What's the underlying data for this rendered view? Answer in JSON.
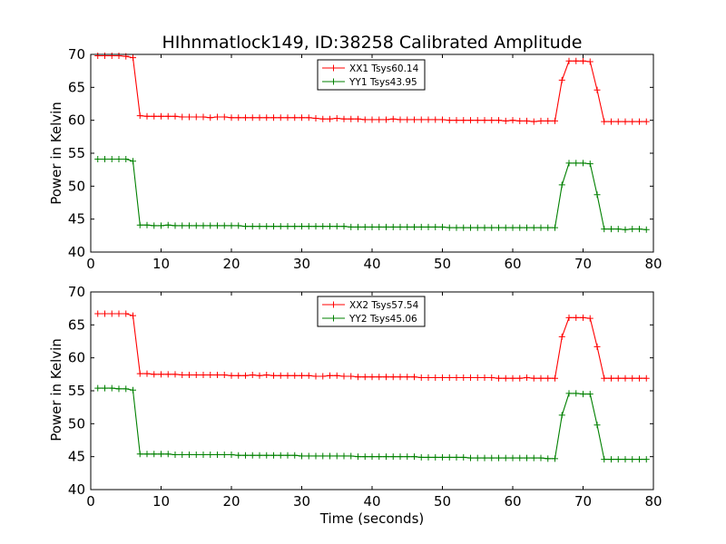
{
  "chart_data": [
    {
      "type": "line",
      "title": "HIhnmatlock149, ID:38258 Calibrated Amplitude",
      "xlabel": "",
      "ylabel": "Power in Kelvin",
      "xlim": [
        0,
        80
      ],
      "ylim": [
        40,
        70
      ],
      "xticks": [
        "0",
        "10",
        "20",
        "30",
        "40",
        "50",
        "60",
        "70",
        "80"
      ],
      "yticks": [
        "40",
        "45",
        "50",
        "55",
        "60",
        "65",
        "70"
      ],
      "grid": false,
      "legend": "upper-center",
      "x": [
        1,
        2,
        3,
        4,
        5,
        6,
        7,
        8,
        9,
        10,
        11,
        12,
        13,
        14,
        15,
        16,
        17,
        18,
        19,
        20,
        21,
        22,
        23,
        24,
        25,
        26,
        27,
        28,
        29,
        30,
        31,
        32,
        33,
        34,
        35,
        36,
        37,
        38,
        39,
        40,
        41,
        42,
        43,
        44,
        45,
        46,
        47,
        48,
        49,
        50,
        51,
        52,
        53,
        54,
        55,
        56,
        57,
        58,
        59,
        60,
        61,
        62,
        63,
        64,
        65,
        66,
        67,
        68,
        69,
        70,
        71,
        72,
        73,
        74,
        75,
        76,
        77,
        78,
        79
      ],
      "series": [
        {
          "name": "XX1 Tsys60.14",
          "color": "#ff0000",
          "values": [
            69.8,
            69.8,
            69.8,
            69.8,
            69.7,
            69.5,
            60.7,
            60.6,
            60.6,
            60.6,
            60.6,
            60.6,
            60.5,
            60.5,
            60.5,
            60.5,
            60.4,
            60.5,
            60.5,
            60.4,
            60.4,
            60.4,
            60.4,
            60.4,
            60.4,
            60.4,
            60.4,
            60.4,
            60.4,
            60.4,
            60.4,
            60.3,
            60.2,
            60.2,
            60.3,
            60.2,
            60.2,
            60.2,
            60.1,
            60.1,
            60.1,
            60.1,
            60.2,
            60.1,
            60.1,
            60.1,
            60.1,
            60.1,
            60.1,
            60.1,
            60.0,
            60.0,
            60.0,
            60.0,
            60.0,
            60.0,
            60.0,
            60.0,
            59.9,
            60.0,
            59.9,
            59.9,
            59.8,
            59.9,
            59.9,
            59.9,
            66.1,
            69.0,
            69.0,
            69.0,
            68.9,
            64.6,
            59.8,
            59.8,
            59.8,
            59.8,
            59.8,
            59.8,
            59.8
          ]
        },
        {
          "name": "YY1 Tsys43.95",
          "color": "#008000",
          "values": [
            54.1,
            54.1,
            54.1,
            54.1,
            54.1,
            53.8,
            44.1,
            44.1,
            44.0,
            44.0,
            44.1,
            44.0,
            44.0,
            44.0,
            44.0,
            44.0,
            44.0,
            44.0,
            44.0,
            44.0,
            44.0,
            43.9,
            43.9,
            43.9,
            43.9,
            43.9,
            43.9,
            43.9,
            43.9,
            43.9,
            43.9,
            43.9,
            43.9,
            43.9,
            43.9,
            43.9,
            43.8,
            43.8,
            43.8,
            43.8,
            43.8,
            43.8,
            43.8,
            43.8,
            43.8,
            43.8,
            43.8,
            43.8,
            43.8,
            43.8,
            43.7,
            43.7,
            43.7,
            43.7,
            43.7,
            43.7,
            43.7,
            43.7,
            43.7,
            43.7,
            43.7,
            43.7,
            43.7,
            43.7,
            43.7,
            43.7,
            50.2,
            53.5,
            53.5,
            53.5,
            53.4,
            48.7,
            43.5,
            43.5,
            43.5,
            43.4,
            43.5,
            43.5,
            43.4
          ]
        }
      ]
    },
    {
      "type": "line",
      "title": "",
      "xlabel": "Time (seconds)",
      "ylabel": "Power in Kelvin",
      "xlim": [
        0,
        80
      ],
      "ylim": [
        40,
        70
      ],
      "xticks": [
        "0",
        "10",
        "20",
        "30",
        "40",
        "50",
        "60",
        "70",
        "80"
      ],
      "yticks": [
        "40",
        "45",
        "50",
        "55",
        "60",
        "65",
        "70"
      ],
      "grid": false,
      "legend": "upper-center",
      "x": [
        1,
        2,
        3,
        4,
        5,
        6,
        7,
        8,
        9,
        10,
        11,
        12,
        13,
        14,
        15,
        16,
        17,
        18,
        19,
        20,
        21,
        22,
        23,
        24,
        25,
        26,
        27,
        28,
        29,
        30,
        31,
        32,
        33,
        34,
        35,
        36,
        37,
        38,
        39,
        40,
        41,
        42,
        43,
        44,
        45,
        46,
        47,
        48,
        49,
        50,
        51,
        52,
        53,
        54,
        55,
        56,
        57,
        58,
        59,
        60,
        61,
        62,
        63,
        64,
        65,
        66,
        67,
        68,
        69,
        70,
        71,
        72,
        73,
        74,
        75,
        76,
        77,
        78,
        79
      ],
      "series": [
        {
          "name": "XX2 Tsys57.54",
          "color": "#ff0000",
          "values": [
            66.7,
            66.7,
            66.7,
            66.7,
            66.7,
            66.4,
            57.6,
            57.6,
            57.5,
            57.5,
            57.5,
            57.5,
            57.4,
            57.4,
            57.4,
            57.4,
            57.4,
            57.4,
            57.4,
            57.3,
            57.3,
            57.3,
            57.4,
            57.3,
            57.4,
            57.3,
            57.3,
            57.3,
            57.3,
            57.3,
            57.3,
            57.2,
            57.2,
            57.3,
            57.3,
            57.2,
            57.2,
            57.1,
            57.1,
            57.1,
            57.1,
            57.1,
            57.1,
            57.1,
            57.1,
            57.1,
            57.0,
            57.0,
            57.0,
            57.0,
            57.0,
            57.0,
            57.0,
            57.0,
            57.0,
            57.0,
            57.0,
            56.9,
            56.9,
            56.9,
            56.9,
            57.0,
            56.9,
            56.9,
            56.9,
            56.9,
            63.2,
            66.1,
            66.1,
            66.1,
            66.0,
            61.7,
            56.9,
            56.9,
            56.9,
            56.9,
            56.9,
            56.9,
            56.9
          ]
        },
        {
          "name": "YY2 Tsys45.06",
          "color": "#008000",
          "values": [
            55.4,
            55.4,
            55.4,
            55.3,
            55.3,
            55.1,
            45.4,
            45.4,
            45.4,
            45.4,
            45.4,
            45.3,
            45.3,
            45.3,
            45.3,
            45.3,
            45.3,
            45.3,
            45.3,
            45.3,
            45.2,
            45.2,
            45.2,
            45.2,
            45.2,
            45.2,
            45.2,
            45.2,
            45.2,
            45.1,
            45.1,
            45.1,
            45.1,
            45.1,
            45.1,
            45.1,
            45.1,
            45.0,
            45.0,
            45.0,
            45.0,
            45.0,
            45.0,
            45.0,
            45.0,
            45.0,
            44.9,
            44.9,
            44.9,
            44.9,
            44.9,
            44.9,
            44.9,
            44.8,
            44.8,
            44.8,
            44.8,
            44.8,
            44.8,
            44.8,
            44.8,
            44.8,
            44.8,
            44.8,
            44.7,
            44.7,
            51.3,
            54.6,
            54.6,
            54.5,
            54.5,
            49.8,
            44.6,
            44.6,
            44.6,
            44.6,
            44.6,
            44.6,
            44.6
          ]
        }
      ]
    }
  ]
}
